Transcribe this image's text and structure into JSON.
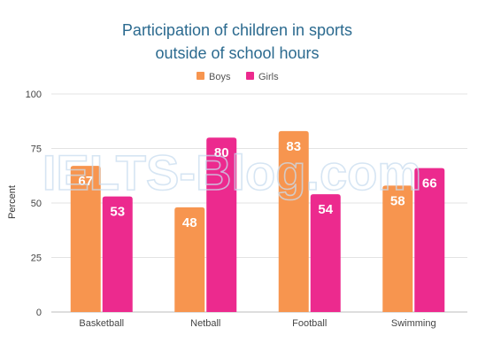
{
  "colors": {
    "boys": "#F7954F",
    "girls": "#EC2A8E",
    "title": "#2b6a8f"
  },
  "watermark": "IELTS-Blog.com",
  "chart_data": {
    "type": "bar",
    "title_line1": "Participation of children in sports",
    "title_line2": "outside of school hours",
    "ylabel": "Percent",
    "xlabel": "",
    "ylim": [
      0,
      100
    ],
    "yticks": [
      0,
      25,
      50,
      75,
      100
    ],
    "grid": true,
    "legend_position": "top-center",
    "categories": [
      "Basketball",
      "Netball",
      "Football",
      "Swimming"
    ],
    "series": [
      {
        "name": "Boys",
        "values": [
          67,
          48,
          83,
          58
        ]
      },
      {
        "name": "Girls",
        "values": [
          53,
          80,
          54,
          66
        ]
      }
    ]
  }
}
